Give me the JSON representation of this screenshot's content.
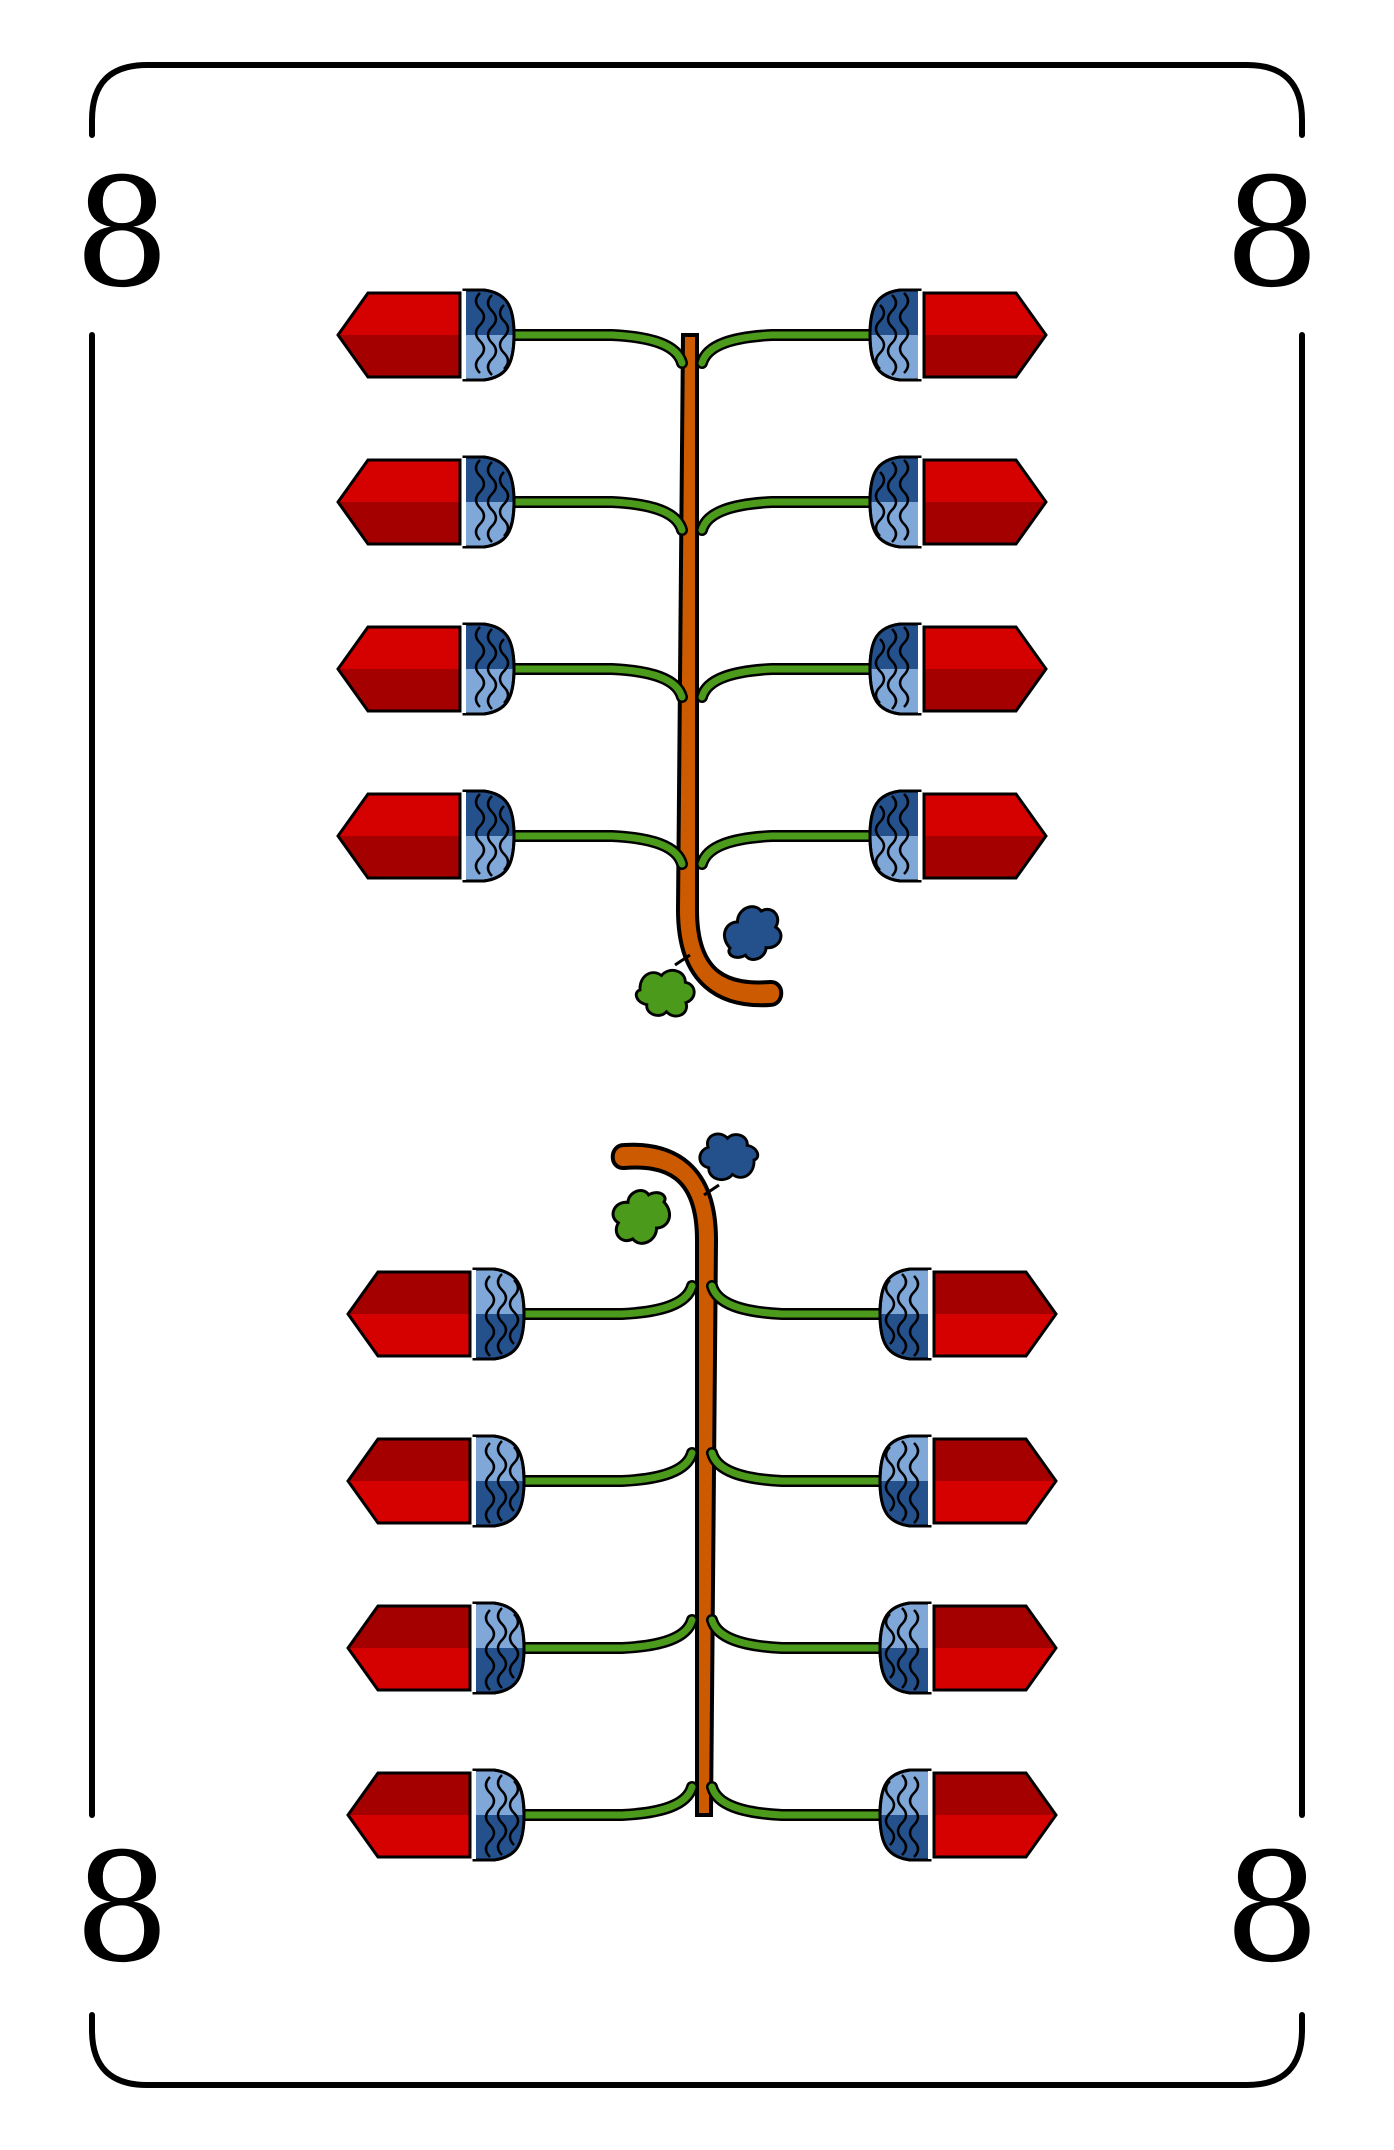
{
  "card": {
    "corner_top_left": "8",
    "corner_top_right": "8",
    "corner_bottom_left": "8",
    "corner_bottom_right": "8"
  },
  "suit": {
    "icon": "acorn-icon",
    "count": 16,
    "clusters": 2,
    "acorns_per_cluster": 8
  },
  "colors": {
    "frame": "#000000",
    "cap_red_light": "#d50000",
    "cap_red_dark": "#a40000",
    "nut_light_blue": "#7fa7d8",
    "nut_dark_blue": "#24508c",
    "stem_green": "#4c9a1c",
    "branch_orange": "#cc5a00",
    "leaf_green": "#4c9a1c",
    "leaf_blue": "#24508c"
  }
}
